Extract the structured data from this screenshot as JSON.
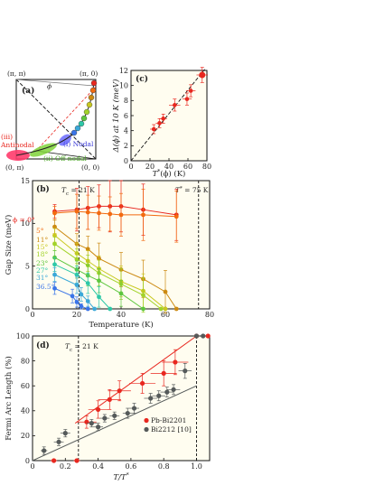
{
  "panels": {
    "a": {
      "tag": "(a)",
      "corners": {
        "top_left": "(π, π)",
        "top_right": "(π, 0)",
        "bottom_left": "(0, π)",
        "bottom_right": "(0, 0)"
      },
      "phi_label": "ϕ",
      "regions": {
        "antinodal": "(iii) Antinodal",
        "antinodal_line1": "(iii)",
        "antinodal_line2": "Antinodal",
        "nodal": "(i) Nodal",
        "offnodal": "(ii) Off-nodal"
      },
      "colors": {
        "antinodal": "#ff3b6b",
        "nodal": "#6b6bff",
        "offnodal": "#7fd43a",
        "fermi": "#222222"
      }
    },
    "c": {
      "tag": "(c)"
    },
    "b": {
      "tag": "(b)",
      "tc_label": "T",
      "tc_sub": "c",
      "tc_val": " = 21 K",
      "tstar_label": "T",
      "tstar_sup": "*",
      "tstar_val": " = 75 K",
      "phi_prefix": "ϕ = "
    },
    "d": {
      "tag": "(d)",
      "tc_label": "T",
      "tc_sub": "c",
      "tc_val": " = 21 K"
    }
  },
  "chart_data": [
    {
      "id": "c",
      "type": "scatter",
      "xlabel_main": "T",
      "xlabel_sup": "*",
      "xlabel_rest": "(ϕ) (K)",
      "ylabel": "Δ(ϕ) at 10 K (meV)",
      "xlim": [
        0,
        80
      ],
      "ylim": [
        0,
        12
      ],
      "xticks": [
        0,
        20,
        40,
        60,
        80
      ],
      "yticks": [
        0,
        2,
        4,
        6,
        8,
        10,
        12
      ],
      "points": [
        {
          "x": 24,
          "y": 4.2,
          "xerr": 4,
          "yerr": 0.6
        },
        {
          "x": 30,
          "y": 5.0,
          "xerr": 4,
          "yerr": 0.6
        },
        {
          "x": 34,
          "y": 5.6,
          "xerr": 4,
          "yerr": 0.6
        },
        {
          "x": 46,
          "y": 7.4,
          "xerr": 6,
          "yerr": 0.8
        },
        {
          "x": 59,
          "y": 8.2,
          "xerr": 5,
          "yerr": 0.8
        },
        {
          "x": 63,
          "y": 9.3,
          "xerr": 5,
          "yerr": 0.8
        },
        {
          "x": 75,
          "y": 11.4,
          "xerr": 6,
          "yerr": 1.0
        }
      ],
      "fit_line": [
        [
          0,
          0
        ],
        [
          80,
          12.6
        ]
      ],
      "colors": {
        "point": "#e8271f",
        "fit": "#111111"
      }
    },
    {
      "id": "b",
      "type": "line",
      "xlabel": "Temperature (K)",
      "ylabel": "Gap Size (meV)",
      "xlim": [
        0,
        80
      ],
      "ylim": [
        0,
        15
      ],
      "xticks": [
        0,
        20,
        40,
        60,
        80
      ],
      "yticks": [
        0,
        5,
        10,
        15
      ],
      "tc": 21,
      "tstar": 75,
      "series": [
        {
          "name": "0°",
          "color": "#e8271f",
          "x": [
            10,
            20,
            25,
            30,
            35,
            40,
            50,
            65
          ],
          "y": [
            11.4,
            11.6,
            11.8,
            12.0,
            12.0,
            12.0,
            11.6,
            11.0
          ],
          "yerr": [
            0.8,
            2.5,
            2.5,
            2.5,
            3,
            3,
            3,
            3
          ]
        },
        {
          "name": "5°",
          "color": "#f26a10",
          "x": [
            10,
            20,
            25,
            30,
            35,
            40,
            50,
            65
          ],
          "y": [
            11.2,
            11.4,
            11.3,
            11.2,
            11.1,
            11.0,
            11.0,
            10.8
          ],
          "yerr": [
            0.8,
            2,
            2,
            2,
            2,
            2.5,
            3,
            3
          ]
        },
        {
          "name": "11°",
          "color": "#cc8a12",
          "x": [
            10,
            20,
            25,
            30,
            40,
            50,
            60,
            65
          ],
          "y": [
            9.6,
            7.6,
            7.0,
            5.9,
            4.6,
            3.5,
            2.0,
            0
          ],
          "yerr": [
            0.8,
            1.2,
            1.5,
            1.8,
            2,
            2.2,
            2.5,
            0
          ]
        },
        {
          "name": "15°",
          "color": "#c8c820",
          "x": [
            10,
            20,
            25,
            30,
            40,
            50,
            60
          ],
          "y": [
            8.6,
            6.5,
            5.6,
            4.7,
            3.2,
            2.1,
            0
          ],
          "yerr": [
            0.8,
            1.2,
            1.2,
            1.5,
            1.8,
            2,
            0
          ]
        },
        {
          "name": "18°",
          "color": "#a2d22a",
          "x": [
            10,
            20,
            25,
            30,
            40,
            50,
            58
          ],
          "y": [
            7.6,
            5.8,
            5.1,
            4.2,
            2.9,
            1.6,
            0
          ],
          "yerr": [
            0.8,
            1.2,
            1.2,
            1.5,
            1.8,
            2,
            0
          ]
        },
        {
          "name": "23°",
          "color": "#5ec63e",
          "x": [
            10,
            20,
            25,
            30,
            40,
            50
          ],
          "y": [
            6.0,
            4.6,
            3.9,
            3.3,
            1.8,
            0
          ],
          "yerr": [
            0.8,
            1,
            1.2,
            1.4,
            1.5,
            0
          ]
        },
        {
          "name": "27°",
          "color": "#2ec8a8",
          "x": [
            10,
            20,
            25,
            30,
            35
          ],
          "y": [
            5.2,
            4.0,
            3.0,
            1.4,
            0
          ],
          "yerr": [
            0.8,
            1,
            1.2,
            1.2,
            0
          ]
        },
        {
          "name": "31°",
          "color": "#3aa8d8",
          "x": [
            10,
            20,
            22,
            25,
            28
          ],
          "y": [
            4.0,
            2.8,
            1.7,
            0.9,
            0
          ],
          "yerr": [
            0.8,
            1,
            0.8,
            0.6,
            0
          ]
        },
        {
          "name": "36.5°",
          "color": "#3a74e8",
          "x": [
            10,
            18,
            20,
            22,
            25
          ],
          "y": [
            2.4,
            1.5,
            0.8,
            0.3,
            0
          ],
          "yerr": [
            0.7,
            0.8,
            0.6,
            0.3,
            0
          ]
        }
      ]
    },
    {
      "id": "d",
      "type": "scatter",
      "xlabel_main": "T/T",
      "xlabel_sup": "*",
      "ylabel": "Fermi Arc Length (%)",
      "xlim": [
        0,
        1.08
      ],
      "ylim": [
        0,
        100
      ],
      "xticks": [
        0,
        0.2,
        0.4,
        0.6,
        0.8,
        1.0
      ],
      "yticks": [
        0,
        20,
        40,
        60,
        80,
        100
      ],
      "tc_x": 0.28,
      "tstar_x": 1.0,
      "series": [
        {
          "name": "Pb-Bi2201",
          "color": "#e8271f",
          "points": [
            {
              "x": 0.13,
              "y": 0,
              "xerr": 0.02,
              "yerr": 0
            },
            {
              "x": 0.27,
              "y": 0,
              "xerr": 0.02,
              "yerr": 0
            },
            {
              "x": 0.33,
              "y": 31,
              "xerr": 0.06,
              "yerr": 5
            },
            {
              "x": 0.4,
              "y": 41,
              "xerr": 0.06,
              "yerr": 7
            },
            {
              "x": 0.47,
              "y": 49,
              "xerr": 0.07,
              "yerr": 8
            },
            {
              "x": 0.53,
              "y": 56,
              "xerr": 0.07,
              "yerr": 8
            },
            {
              "x": 0.67,
              "y": 62,
              "xerr": 0.08,
              "yerr": 8
            },
            {
              "x": 0.8,
              "y": 70,
              "xerr": 0.08,
              "yerr": 10
            },
            {
              "x": 0.87,
              "y": 79,
              "xerr": 0.08,
              "yerr": 10
            },
            {
              "x": 1.0,
              "y": 100,
              "xerr": 0.01,
              "yerr": 0
            },
            {
              "x": 1.07,
              "y": 100,
              "xerr": 0.01,
              "yerr": 0
            }
          ],
          "fit": [
            [
              0.26,
              30
            ],
            [
              1.0,
              100
            ]
          ]
        },
        {
          "name": "Bi2212 [10]",
          "color": "#555a5a",
          "points": [
            {
              "x": 0.07,
              "y": 8,
              "xerr": 0.02,
              "yerr": 3
            },
            {
              "x": 0.16,
              "y": 15,
              "xerr": 0.03,
              "yerr": 3
            },
            {
              "x": 0.2,
              "y": 22,
              "xerr": 0.03,
              "yerr": 3
            },
            {
              "x": 0.36,
              "y": 30,
              "xerr": 0.03,
              "yerr": 3
            },
            {
              "x": 0.4,
              "y": 27,
              "xerr": 0.03,
              "yerr": 3
            },
            {
              "x": 0.44,
              "y": 34,
              "xerr": 0.03,
              "yerr": 3
            },
            {
              "x": 0.5,
              "y": 36,
              "xerr": 0.03,
              "yerr": 3
            },
            {
              "x": 0.58,
              "y": 38,
              "xerr": 0.03,
              "yerr": 4
            },
            {
              "x": 0.62,
              "y": 42,
              "xerr": 0.03,
              "yerr": 4
            },
            {
              "x": 0.72,
              "y": 50,
              "xerr": 0.04,
              "yerr": 4
            },
            {
              "x": 0.77,
              "y": 52,
              "xerr": 0.04,
              "yerr": 4
            },
            {
              "x": 0.82,
              "y": 55,
              "xerr": 0.04,
              "yerr": 4
            },
            {
              "x": 0.86,
              "y": 57,
              "xerr": 0.04,
              "yerr": 4
            },
            {
              "x": 0.93,
              "y": 72,
              "xerr": 0.04,
              "yerr": 6
            },
            {
              "x": 1.0,
              "y": 100,
              "xerr": 0.01,
              "yerr": 0
            },
            {
              "x": 1.04,
              "y": 100,
              "xerr": 0.01,
              "yerr": 0
            }
          ],
          "fit": [
            [
              0.0,
              0
            ],
            [
              1.0,
              60
            ]
          ]
        }
      ]
    }
  ],
  "background": "#fffdf0"
}
